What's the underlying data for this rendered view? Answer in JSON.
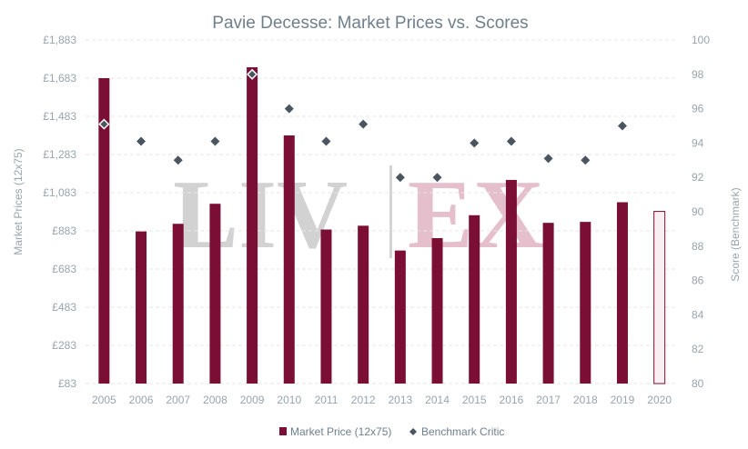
{
  "chart_data": {
    "type": "bar",
    "title": "Pavie Decesse: Market Prices vs. Scores",
    "watermark": {
      "left": "LIV",
      "right": "EX"
    },
    "categories": [
      "2005",
      "2006",
      "2007",
      "2008",
      "2009",
      "2010",
      "2011",
      "2012",
      "2013",
      "2014",
      "2015",
      "2016",
      "2017",
      "2018",
      "2019",
      "2020"
    ],
    "y_left": {
      "label": "Market Prices (12x75)",
      "ticks": [
        "£83",
        "£283",
        "£483",
        "£683",
        "£883",
        "£1,083",
        "£1,283",
        "£1,483",
        "£1,683",
        "£1,883"
      ],
      "range": [
        83,
        1883
      ]
    },
    "y_right": {
      "label": "Score (Benchmark)",
      "ticks": [
        "80",
        "82",
        "84",
        "86",
        "88",
        "90",
        "92",
        "94",
        "96",
        "98",
        "100"
      ],
      "range": [
        80,
        100
      ]
    },
    "series": [
      {
        "name": "Market Price (12x75)",
        "type": "bar",
        "axis": "left",
        "color": "#7b0e35",
        "values": [
          1683,
          880,
          920,
          1025,
          1740,
          1383,
          890,
          910,
          780,
          845,
          965,
          1150,
          925,
          930,
          1033,
          985
        ],
        "estimated_flags": [
          false,
          false,
          false,
          false,
          false,
          false,
          false,
          false,
          false,
          false,
          false,
          false,
          false,
          false,
          false,
          true
        ]
      },
      {
        "name": "Benchmark Critic",
        "type": "scatter",
        "axis": "right",
        "color": "#4a5560",
        "values": [
          95.1,
          94.1,
          93.0,
          94.1,
          98.0,
          96.0,
          94.1,
          95.1,
          92.0,
          92.0,
          94.0,
          94.1,
          93.1,
          93.0,
          95.0,
          null
        ]
      }
    ],
    "legend": [
      "Market Price (12x75)",
      "Benchmark Critic"
    ],
    "legend_position": "bottom",
    "grid": true
  }
}
